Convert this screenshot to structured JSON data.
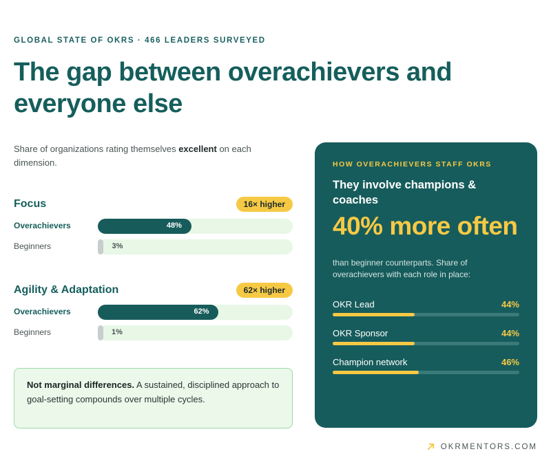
{
  "header": {
    "eyebrow": "GLOBAL STATE OF OKRS · 466 LEADERS SURVEYED",
    "title": "The gap between overachievers and everyone else"
  },
  "intro": {
    "text_before": "Share of organizations rating themselves ",
    "emphasis": "excellent",
    "text_after": " on each dimension."
  },
  "comparisons": [
    {
      "title": "Focus",
      "badge": "16× higher",
      "rows": [
        {
          "label": "Overachievers",
          "value_label": "48%",
          "value": 48
        },
        {
          "label": "Beginners",
          "value_label": "3%",
          "value": 3
        }
      ]
    },
    {
      "title": "Agility & Adaptation",
      "badge": "62× higher",
      "rows": [
        {
          "label": "Overachievers",
          "value_label": "62%",
          "value": 62
        },
        {
          "label": "Beginners",
          "value_label": "1%",
          "value": 1
        }
      ]
    }
  ],
  "callout": {
    "bold": "Not marginal differences.",
    "text": " A sustained, disciplined approach to goal-setting compounds over multiple cycles."
  },
  "card": {
    "eyebrow": "HOW OVERACHIEVERS STAFF OKRS",
    "headline": "They involve champions & coaches",
    "big": "40% more often",
    "sub": "than beginner counterparts. Share of overachievers with each role in place:",
    "roles": [
      {
        "label": "OKR Lead",
        "value_label": "44%",
        "value": 44
      },
      {
        "label": "OKR Sponsor",
        "value_label": "44%",
        "value": 44
      },
      {
        "label": "Champion network",
        "value_label": "46%",
        "value": 46
      }
    ]
  },
  "footer": {
    "brand": "OKRMENTORS.COM",
    "icon": "arrow-up-right-icon"
  },
  "colors": {
    "brand_teal": "#175c5c",
    "accent_yellow": "#f6c945",
    "light_green": "#e8f7e6"
  }
}
